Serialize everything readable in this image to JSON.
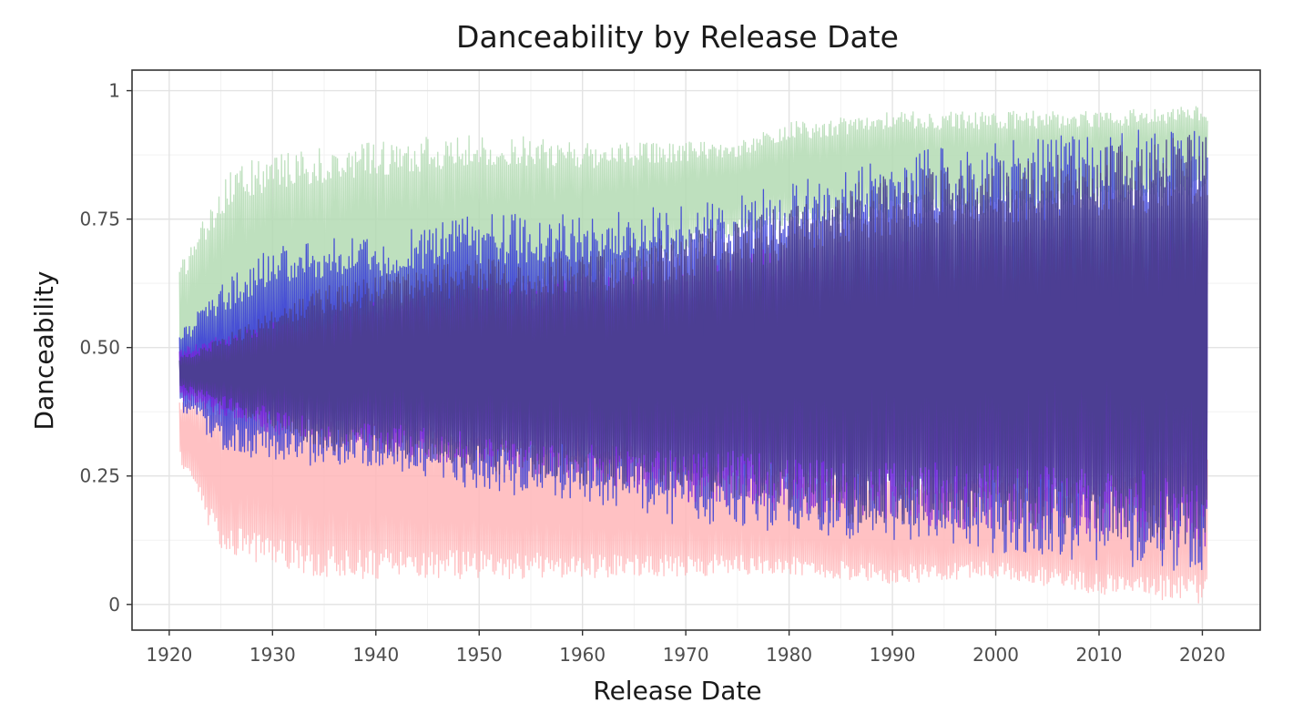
{
  "chart_data": {
    "type": "line",
    "title": "Danceability by Release Date",
    "xlabel": "Release Date",
    "ylabel": "Danceability",
    "xlim": [
      1916.4,
      2025.6
    ],
    "ylim": [
      -0.05,
      1.04
    ],
    "x_ticks": [
      1920,
      1930,
      1940,
      1950,
      1960,
      1970,
      1980,
      1990,
      2000,
      2010,
      2020
    ],
    "x_tick_labels": [
      "1920",
      "1930",
      "1940",
      "1950",
      "1960",
      "1970",
      "1980",
      "1990",
      "2000",
      "2010",
      "2020"
    ],
    "y_ticks": [
      0,
      0.25,
      0.5,
      0.75,
      1
    ],
    "y_tick_labels": [
      "0",
      "0.25",
      "0.50",
      "0.75",
      "1"
    ],
    "grid": true,
    "legend": "none",
    "x_range": [
      1921,
      2020.5
    ],
    "series": [
      {
        "color": "#b3dbb3",
        "opacity": 0.85,
        "envelope_low": [
          [
            1921,
            0.4
          ],
          [
            1925,
            0.45
          ],
          [
            1935,
            0.5
          ],
          [
            1950,
            0.55
          ],
          [
            1960,
            0.6
          ],
          [
            1975,
            0.72
          ],
          [
            1990,
            0.75
          ],
          [
            2000,
            0.76
          ],
          [
            2020,
            0.8
          ]
        ],
        "envelope_high": [
          [
            1921,
            0.66
          ],
          [
            1926,
            0.85
          ],
          [
            1930,
            0.88
          ],
          [
            1940,
            0.9
          ],
          [
            1950,
            0.92
          ],
          [
            1960,
            0.9
          ],
          [
            1975,
            0.9
          ],
          [
            1980,
            0.94
          ],
          [
            1990,
            0.96
          ],
          [
            2000,
            0.96
          ],
          [
            2010,
            0.96
          ],
          [
            2020,
            0.97
          ]
        ]
      },
      {
        "color": "#ffb6b9",
        "opacity": 0.85,
        "envelope_low": [
          [
            1921,
            0.28
          ],
          [
            1925,
            0.1
          ],
          [
            1935,
            0.05
          ],
          [
            1950,
            0.05
          ],
          [
            1960,
            0.05
          ],
          [
            1980,
            0.06
          ],
          [
            1990,
            0.04
          ],
          [
            2000,
            0.05
          ],
          [
            2010,
            0.02
          ],
          [
            2020,
            0.0
          ]
        ],
        "envelope_high": [
          [
            1921,
            0.4
          ],
          [
            1930,
            0.42
          ],
          [
            1940,
            0.4
          ],
          [
            1950,
            0.36
          ],
          [
            1960,
            0.33
          ],
          [
            1970,
            0.3
          ],
          [
            1980,
            0.27
          ],
          [
            1990,
            0.25
          ],
          [
            2000,
            0.25
          ],
          [
            2010,
            0.24
          ],
          [
            2020,
            0.32
          ]
        ]
      },
      {
        "color": "#3a3fd6",
        "opacity": 0.9,
        "envelope_low": [
          [
            1921,
            0.38
          ],
          [
            1925,
            0.3
          ],
          [
            1930,
            0.27
          ],
          [
            1940,
            0.26
          ],
          [
            1950,
            0.22
          ],
          [
            1960,
            0.2
          ],
          [
            1970,
            0.15
          ],
          [
            1980,
            0.14
          ],
          [
            1990,
            0.12
          ],
          [
            2000,
            0.1
          ],
          [
            2010,
            0.08
          ],
          [
            2020,
            0.06
          ]
        ],
        "envelope_high": [
          [
            1921,
            0.53
          ],
          [
            1925,
            0.62
          ],
          [
            1930,
            0.7
          ],
          [
            1940,
            0.72
          ],
          [
            1950,
            0.76
          ],
          [
            1960,
            0.76
          ],
          [
            1970,
            0.78
          ],
          [
            1980,
            0.82
          ],
          [
            1990,
            0.88
          ],
          [
            2000,
            0.9
          ],
          [
            2010,
            0.92
          ],
          [
            2020,
            0.93
          ]
        ]
      },
      {
        "color": "#7b22d9",
        "opacity": 0.85,
        "envelope_low": [
          [
            1921,
            0.4
          ],
          [
            1930,
            0.33
          ],
          [
            1940,
            0.3
          ],
          [
            1950,
            0.26
          ],
          [
            1960,
            0.24
          ],
          [
            1970,
            0.2
          ],
          [
            1980,
            0.18
          ],
          [
            1990,
            0.16
          ],
          [
            2000,
            0.14
          ],
          [
            2010,
            0.13
          ],
          [
            2020,
            0.1
          ]
        ],
        "envelope_high": [
          [
            1921,
            0.5
          ],
          [
            1930,
            0.55
          ],
          [
            1940,
            0.6
          ],
          [
            1950,
            0.62
          ],
          [
            1960,
            0.64
          ],
          [
            1970,
            0.66
          ],
          [
            1980,
            0.7
          ],
          [
            1990,
            0.72
          ],
          [
            2000,
            0.74
          ],
          [
            2010,
            0.75
          ],
          [
            2020,
            0.76
          ]
        ]
      },
      {
        "color": "#4a3f8f",
        "opacity": 0.95,
        "envelope_low": [
          [
            1921,
            0.42
          ],
          [
            1935,
            0.3
          ],
          [
            1945,
            0.28
          ],
          [
            1955,
            0.24
          ],
          [
            1965,
            0.22
          ],
          [
            1976,
            0.2
          ],
          [
            1985,
            0.16
          ],
          [
            1995,
            0.15
          ],
          [
            2005,
            0.14
          ],
          [
            2015,
            0.12
          ],
          [
            2020,
            0.1
          ]
        ],
        "envelope_high": [
          [
            1921,
            0.48
          ],
          [
            1935,
            0.62
          ],
          [
            1945,
            0.66
          ],
          [
            1955,
            0.68
          ],
          [
            1965,
            0.7
          ],
          [
            1976,
            0.75
          ],
          [
            1985,
            0.82
          ],
          [
            1995,
            0.86
          ],
          [
            2005,
            0.88
          ],
          [
            2015,
            0.9
          ],
          [
            2020,
            0.92
          ]
        ]
      }
    ]
  }
}
